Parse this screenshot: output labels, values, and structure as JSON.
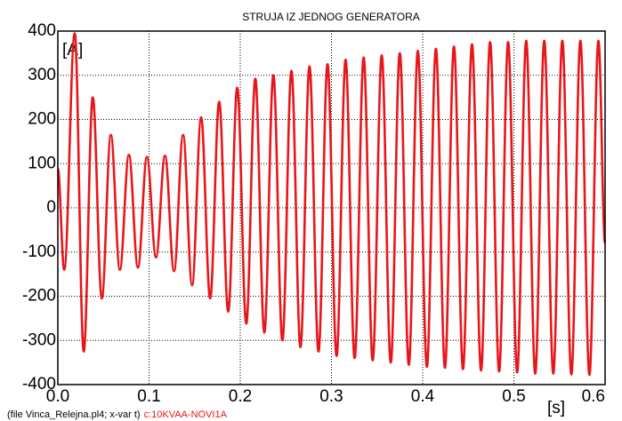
{
  "chart_data": {
    "type": "line",
    "title": "STRUJA IZ JEDNOG GENERATORA",
    "y_label": "[A]",
    "x_label": "[s]",
    "footer": "(file Vinca_Relejna.pl4; x-var t)",
    "xlim": [
      0,
      0.6
    ],
    "ylim": [
      -400,
      400
    ],
    "xticks": [
      {
        "value": 0,
        "label": "0.0"
      },
      0.1,
      0.2,
      0.3,
      0.4,
      0.5,
      0.6
    ],
    "yticks": [
      -400,
      -300,
      -200,
      -100,
      0,
      100,
      200,
      300,
      400
    ],
    "grid": true,
    "series": [
      {
        "name": "c:10KVAA-NOVI1A",
        "color": "#e8161b",
        "x": [
          0,
          0.007,
          0.0185,
          0.0284,
          0.0383,
          0.0482,
          0.0581,
          0.068,
          0.0779,
          0.0878,
          0.0977,
          0.1076,
          0.1175,
          0.1274,
          0.1373,
          0.1472,
          0.1571,
          0.167,
          0.1769,
          0.1868,
          0.1967,
          0.2066,
          0.2165,
          0.2264,
          0.2363,
          0.2462,
          0.2561,
          0.266,
          0.2759,
          0.2858,
          0.2957,
          0.3056,
          0.3155,
          0.3254,
          0.3353,
          0.3452,
          0.3551,
          0.365,
          0.3749,
          0.3848,
          0.3947,
          0.4046,
          0.4145,
          0.4244,
          0.4343,
          0.4442,
          0.4541,
          0.464,
          0.4739,
          0.4838,
          0.4937,
          0.5036,
          0.5135,
          0.5234,
          0.5333,
          0.5432,
          0.5531,
          0.563,
          0.5729,
          0.5828,
          0.5927,
          0.6
        ],
        "values": [
          88,
          -140,
          395,
          -325,
          250,
          -205,
          165,
          -140,
          120,
          -135,
          115,
          -112,
          118,
          -143,
          165,
          -175,
          205,
          -205,
          240,
          -235,
          272,
          -262,
          292,
          -282,
          300,
          -300,
          310,
          -315,
          320,
          -325,
          325,
          -335,
          335,
          -340,
          340,
          -345,
          345,
          -350,
          350,
          -355,
          355,
          -360,
          360,
          -362,
          365,
          -365,
          370,
          -368,
          375,
          -370,
          375,
          -372,
          378,
          -375,
          378,
          -375,
          378,
          -377,
          378,
          -378,
          378,
          -80
        ]
      }
    ]
  }
}
